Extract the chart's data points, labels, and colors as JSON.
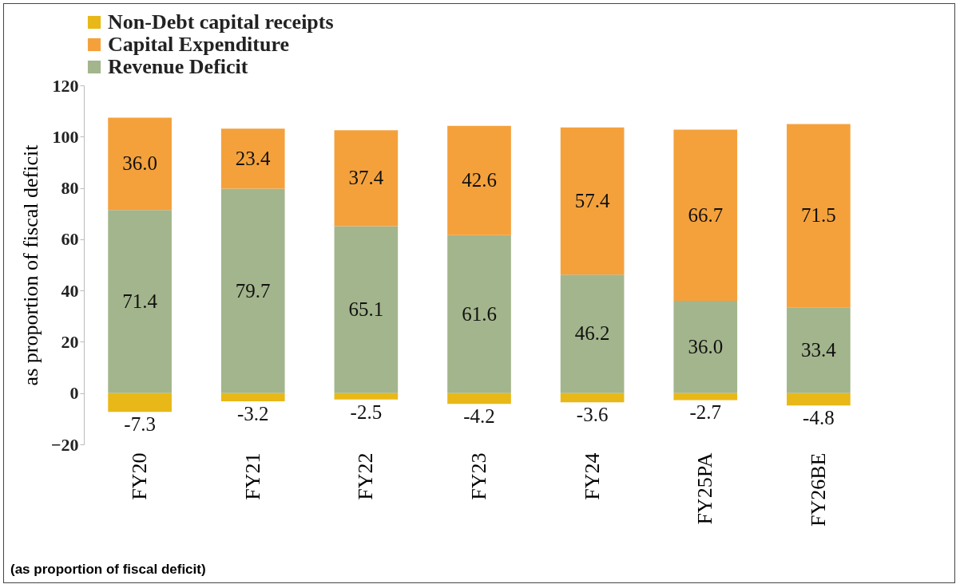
{
  "chart_data": {
    "type": "bar",
    "stacked": true,
    "ylabel": "as proportion of fiscal deficit",
    "categories": [
      "FY20",
      "FY21",
      "FY22",
      "FY23",
      "FY24",
      "FY25PA",
      "FY26BE"
    ],
    "series": [
      {
        "name": "Revenue Deficit",
        "color": "#a3b58c",
        "values": [
          71.4,
          79.7,
          65.1,
          61.6,
          46.2,
          36.0,
          33.4
        ],
        "value_labels": [
          "71.4",
          "79.7",
          "65.1",
          "61.6",
          "46.2",
          "36.0",
          "33.4"
        ]
      },
      {
        "name": "Capital Expenditure",
        "color": "#f4a13c",
        "values": [
          36.0,
          23.4,
          37.4,
          42.6,
          57.4,
          66.7,
          71.5
        ],
        "value_labels": [
          "36.0",
          "23.4",
          "37.4",
          "42.6",
          "57.4",
          "66.7",
          "71.5"
        ]
      },
      {
        "name": "Non-Debt capital receipts",
        "color": "#e8b818",
        "values": [
          -7.3,
          -3.2,
          -2.5,
          -4.2,
          -3.6,
          -2.7,
          -4.8
        ],
        "value_labels": [
          "-7.3",
          "-3.2",
          "-2.5",
          "-4.2",
          "-3.6",
          "-2.7",
          "-4.8"
        ]
      }
    ],
    "ylim": [
      -20,
      120
    ],
    "yticks": [
      -20,
      0,
      20,
      40,
      60,
      80,
      100,
      120
    ],
    "grid": false,
    "legend": "top",
    "annotations": [
      "(as proportion of fiscal deficit)"
    ]
  }
}
